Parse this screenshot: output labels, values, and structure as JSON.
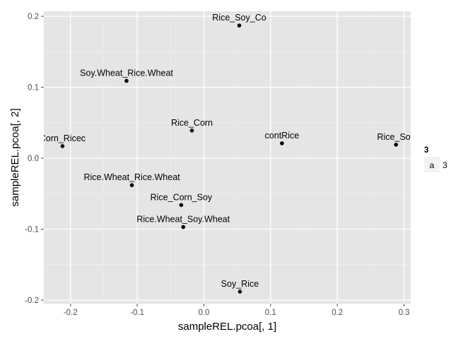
{
  "chart_data": {
    "type": "scatter",
    "xlabel": "sampleREL.pcoa[, 1]",
    "ylabel": "sampleREL.pcoa[, 2]",
    "xlim": [
      -0.24,
      0.31
    ],
    "ylim": [
      -0.205,
      0.207
    ],
    "x_ticks": [
      -0.2,
      -0.1,
      0.0,
      0.1,
      0.2,
      0.3
    ],
    "x_tick_labels": [
      "-0.2",
      "-0.1",
      "0.0",
      "0.1",
      "0.2",
      "0.3"
    ],
    "y_ticks": [
      -0.2,
      -0.1,
      0.0,
      0.1,
      0.2
    ],
    "y_tick_labels": [
      "-0.2",
      "-0.1",
      "0.0",
      "0.1",
      "0.2"
    ],
    "grid": true,
    "background": "#e5e5e5",
    "point_color": "#000000",
    "points": [
      {
        "label": "Rice_Soy_Co",
        "x": 0.053,
        "y": 0.187
      },
      {
        "label": "Soy.Wheat_Rice.Wheat",
        "x": -0.116,
        "y": 0.109
      },
      {
        "label": "Rice_Corn",
        "x": -0.018,
        "y": 0.039
      },
      {
        "label": "contRice",
        "x": 0.117,
        "y": 0.021
      },
      {
        "label": "Rice_Soy",
        "x": 0.288,
        "y": 0.019
      },
      {
        "label": "Corn_Ricec",
        "x": -0.212,
        "y": 0.017
      },
      {
        "label": "Rice.Wheat_Rice.Wheat",
        "x": -0.108,
        "y": -0.038
      },
      {
        "label": "Rice_Corn_Soy",
        "x": -0.034,
        "y": -0.066
      },
      {
        "label": "Rice.Wheat_Soy.Wheat",
        "x": -0.031,
        "y": -0.097
      },
      {
        "label": "Soy_Rice",
        "x": 0.054,
        "y": -0.188
      }
    ],
    "legend": {
      "placement": "right",
      "title": "3",
      "items": [
        {
          "key": "a",
          "label": "3"
        }
      ]
    }
  }
}
